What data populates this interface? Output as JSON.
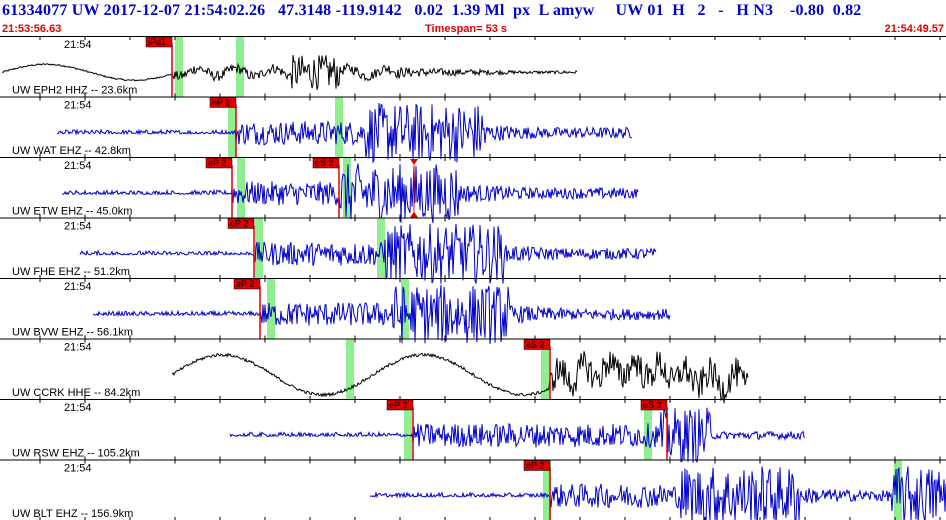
{
  "header": {
    "event_line": "61334077 UW 2017-12-07 21:54:02.26   47.3148 -119.9142   0.02  1.39 Ml  px  L amyw     UW 01  H   2   -   H N3    -0.80  0.82",
    "start_time": "21:53:56.63",
    "timespan": "Timespan=  53 s",
    "end_time": "21:54:49.57"
  },
  "traces": [
    {
      "label": "UW EPH2 HHZ -- 23.6km",
      "time": "21:54",
      "color": "#000000",
      "picks": [
        {
          "name": "iPd1",
          "x": 172
        }
      ],
      "green": [
        179,
        240
      ]
    },
    {
      "label": "UW WAT EHZ -- 42.8km",
      "time": "21:54",
      "color": "#0000cc",
      "picks": [
        {
          "name": "eP 2",
          "x": 236
        }
      ],
      "green": [
        232,
        339
      ]
    },
    {
      "label": "UW ETW EHZ -- 45.0km",
      "time": "21:54",
      "color": "#0000cc",
      "picks": [
        {
          "name": "eP 2",
          "x": 232
        },
        {
          "name": "eS 2",
          "x": 339
        }
      ],
      "green": [
        241,
        347
      ]
    },
    {
      "label": "UW FHE EHZ -- 51.2km",
      "time": "21:54",
      "color": "#0000cc",
      "picks": [
        {
          "name": "eP 2",
          "x": 254
        }
      ],
      "green": [
        259,
        381
      ]
    },
    {
      "label": "UW BVW EHZ -- 56.1km",
      "time": "21:54",
      "color": "#0000cc",
      "picks": [
        {
          "name": "eP 2",
          "x": 260
        }
      ],
      "green": [
        271,
        405
      ]
    },
    {
      "label": "UW CCRK HHE -- 84.2km",
      "time": "21:54",
      "color": "#000000",
      "picks": [
        {
          "name": "eS 2",
          "x": 550
        }
      ],
      "green": [
        350,
        545
      ]
    },
    {
      "label": "UW RSW EHZ -- 105.2km",
      "time": "21:54",
      "color": "#0000cc",
      "picks": [
        {
          "name": "eP 2",
          "x": 413
        },
        {
          "name": "eS 2",
          "x": 667
        }
      ],
      "green": [
        408,
        648
      ]
    },
    {
      "label": "UW BLT EHZ -- 156.9km",
      "time": "21:54",
      "color": "#0000cc",
      "picks": [
        {
          "name": "eP 2",
          "x": 550
        }
      ],
      "green": [
        547,
        898
      ]
    }
  ]
}
